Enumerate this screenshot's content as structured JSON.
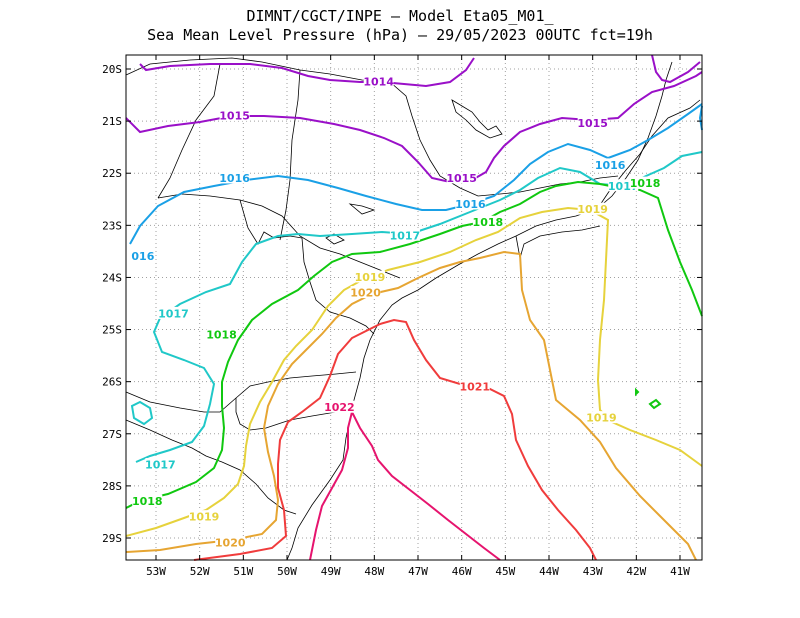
{
  "title_line1": "DIMNT/CGCT/INPE –  Model Eta05_M01_",
  "title_line2": "Sea Mean Level Pressure (hPa) – 29/05/2023 00UTC fct=19h",
  "lon_labels": [
    "53W",
    "52W",
    "51W",
    "50W",
    "49W",
    "48W",
    "47W",
    "46W",
    "45W",
    "44W",
    "43W",
    "42W",
    "41W"
  ],
  "lat_labels": [
    "20S",
    "21S",
    "22S",
    "23S",
    "24S",
    "25S",
    "26S",
    "27S",
    "28S",
    "29S"
  ],
  "colors": {
    "1014": "#9a10c8",
    "1015": "#9a10c8",
    "1016": "#1aa0e6",
    "1017": "#20c8c8",
    "1018": "#10c810",
    "1019": "#e6d23c",
    "1020": "#e6a532",
    "1021": "#f03c3c",
    "1022": "#e6146e",
    "coast": "#000000",
    "grid": "#a0a0a0"
  },
  "contour_labels": [
    {
      "text": "1014",
      "level": "1014",
      "lon": -47.9,
      "lat": -20.25
    },
    {
      "text": "1015",
      "level": "1015",
      "lon": -51.2,
      "lat": -20.9
    },
    {
      "text": "1015",
      "level": "1015",
      "lon": -46.0,
      "lat": -22.1
    },
    {
      "text": "1015",
      "level": "1015",
      "lon": -43.0,
      "lat": -21.05
    },
    {
      "text": "1016",
      "level": "1016",
      "lon": -51.2,
      "lat": -22.1
    },
    {
      "text": "1016",
      "level": "1016",
      "lon": -45.8,
      "lat": -22.6
    },
    {
      "text": "1016",
      "level": "1016",
      "lon": -42.6,
      "lat": -21.85
    },
    {
      "text": "016",
      "level": "1016",
      "lon": -53.3,
      "lat": -23.6
    },
    {
      "text": "1017",
      "level": "1017",
      "lon": -47.3,
      "lat": -23.2
    },
    {
      "text": "1017",
      "level": "1017",
      "lon": -52.6,
      "lat": -24.7
    },
    {
      "text": "1017",
      "level": "1017",
      "lon": -52.9,
      "lat": -27.6
    },
    {
      "text": "1017",
      "level": "1017",
      "lon": -42.3,
      "lat": -22.25
    },
    {
      "text": "1018",
      "level": "1018",
      "lon": -45.4,
      "lat": -22.95
    },
    {
      "text": "1018",
      "level": "1018",
      "lon": -51.5,
      "lat": -25.1
    },
    {
      "text": "1018",
      "level": "1018",
      "lon": -53.2,
      "lat": -28.3
    },
    {
      "text": "1018",
      "level": "1018",
      "lon": -41.8,
      "lat": -22.2
    },
    {
      "text": "1019",
      "level": "1019",
      "lon": -43.0,
      "lat": -22.7
    },
    {
      "text": "1019",
      "level": "1019",
      "lon": -48.1,
      "lat": -24.0
    },
    {
      "text": "1019",
      "level": "1019",
      "lon": -51.9,
      "lat": -28.6
    },
    {
      "text": "1019",
      "level": "1019",
      "lon": -42.8,
      "lat": -26.7
    },
    {
      "text": "1020",
      "level": "1020",
      "lon": -48.2,
      "lat": -24.3
    },
    {
      "text": "1020",
      "level": "1020",
      "lon": -51.3,
      "lat": -29.1
    },
    {
      "text": "1021",
      "level": "1021",
      "lon": -45.7,
      "lat": -26.1
    },
    {
      "text": "1022",
      "level": "1022",
      "lon": -48.8,
      "lat": -26.5
    }
  ]
}
